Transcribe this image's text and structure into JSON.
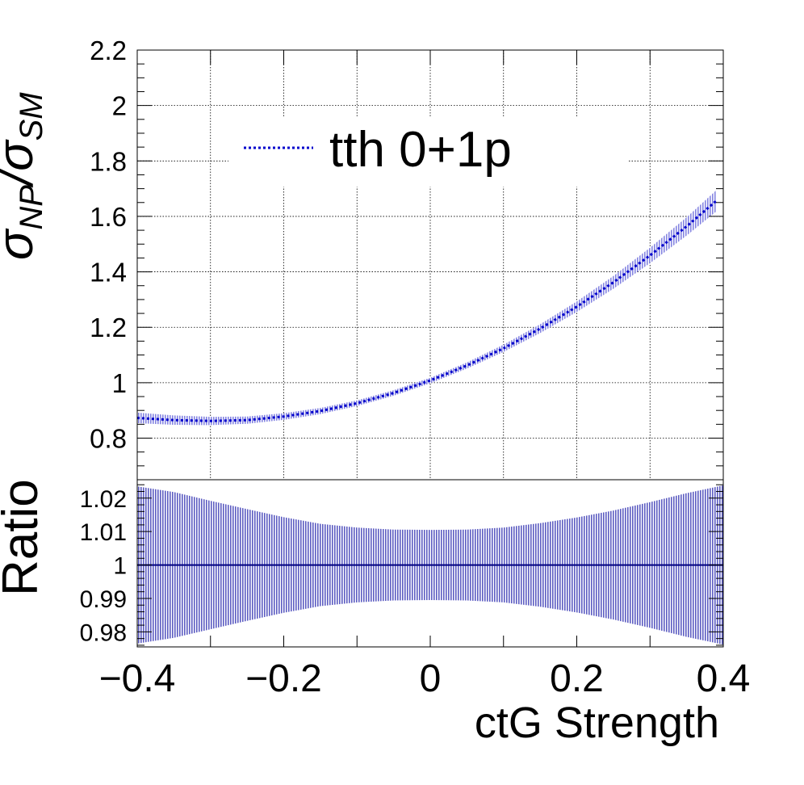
{
  "chart_data": [
    {
      "panel": "main",
      "type": "line",
      "ylabel_base": "σ",
      "ylabel_sub1": "NP",
      "ylabel_sep": "/σ",
      "ylabel_sub2": "SM",
      "xlim": [
        -0.4,
        0.4
      ],
      "ylim": [
        0.65,
        2.2
      ],
      "grid": true,
      "legend_position": "top",
      "y_ticks": [
        "0.8",
        "1",
        "1.2",
        "1.4",
        "1.6",
        "1.8",
        "2",
        "2.2"
      ],
      "series": [
        {
          "name": "tth 0+1p",
          "line_style": "dotted",
          "color": "#0000cc",
          "band_color": "#5b5bd6",
          "x": [
            -0.4,
            -0.35,
            -0.3,
            -0.25,
            -0.2,
            -0.15,
            -0.1,
            -0.05,
            0.0,
            0.05,
            0.1,
            0.15,
            0.2,
            0.25,
            0.3,
            0.35,
            0.39
          ],
          "y": [
            0.873,
            0.865,
            0.862,
            0.865,
            0.878,
            0.898,
            0.926,
            0.963,
            1.008,
            1.062,
            1.124,
            1.195,
            1.274,
            1.362,
            1.459,
            1.564,
            1.655
          ],
          "band_halfwidth": [
            0.019,
            0.017,
            0.015,
            0.013,
            0.012,
            0.011,
            0.01,
            0.01,
            0.01,
            0.011,
            0.013,
            0.016,
            0.019,
            0.023,
            0.028,
            0.033,
            0.038
          ]
        }
      ]
    },
    {
      "panel": "ratio",
      "type": "line",
      "ylabel": "Ratio",
      "xlabel": "ctG Strength",
      "xlim": [
        -0.4,
        0.4
      ],
      "ylim": [
        0.9755,
        1.0255
      ],
      "grid": false,
      "x_ticks": [
        "−0.4",
        "−0.2",
        "0",
        "0.2",
        "0.4"
      ],
      "y_ticks": [
        "0.98",
        "0.99",
        "1",
        "1.01",
        "1.02"
      ],
      "series": [
        {
          "line_color": "#000080",
          "band_color": "#3333b3",
          "x": [
            -0.4,
            -0.35,
            -0.3,
            -0.25,
            -0.2,
            -0.15,
            -0.1,
            -0.05,
            0.0,
            0.05,
            0.1,
            0.15,
            0.2,
            0.25,
            0.3,
            0.35,
            0.4
          ],
          "y": [
            1,
            1,
            1,
            1,
            1,
            1,
            1,
            1,
            1,
            1,
            1,
            1,
            1,
            1,
            1,
            1,
            1
          ],
          "band_halfwidth": [
            0.0235,
            0.0218,
            0.0192,
            0.0167,
            0.0143,
            0.0123,
            0.0112,
            0.0106,
            0.0105,
            0.0106,
            0.0112,
            0.0125,
            0.0142,
            0.0163,
            0.0188,
            0.0215,
            0.0238
          ]
        }
      ]
    }
  ]
}
